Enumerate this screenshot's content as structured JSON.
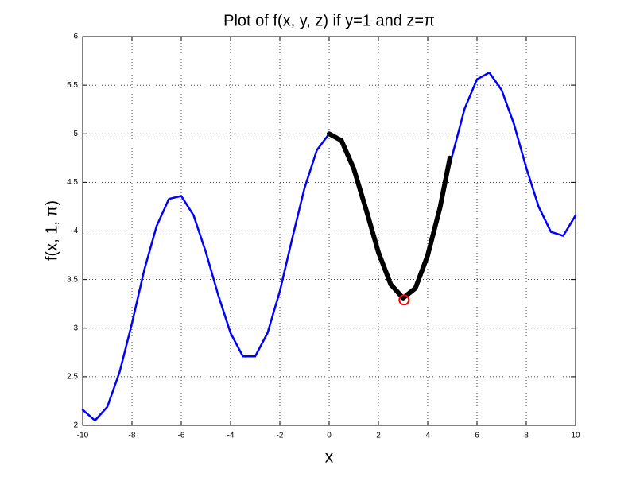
{
  "chart_data": {
    "type": "line",
    "title": "Plot of f(x, y, z) if y=1 and z=π",
    "x_label": "x",
    "y_label": "f(x, 1, π)",
    "xlim": [
      -10,
      10
    ],
    "ylim": [
      2,
      6
    ],
    "xticks": [
      -10,
      -8,
      -6,
      -4,
      -2,
      0,
      2,
      4,
      6,
      8,
      10
    ],
    "yticks": [
      2,
      2.5,
      3,
      3.5,
      4,
      4.5,
      5,
      5.5,
      6
    ],
    "grid": true,
    "series": [
      {
        "color": "#0000ff",
        "width": 2.5,
        "x": [
          -10,
          -9.5,
          -9,
          -8.5,
          -8,
          -7.5,
          -7,
          -6.5,
          -6,
          -5.5,
          -5,
          -4.5,
          -4,
          -3.5,
          -3,
          -2.5,
          -2,
          -1.5,
          -1,
          -0.5,
          0,
          0.5,
          1,
          1.5,
          2,
          2.5,
          3,
          3.5,
          4,
          4.5,
          5,
          5.5,
          6,
          6.5,
          7,
          7.5,
          8,
          8.5,
          9,
          9.5,
          10
        ],
        "values": [
          2.16,
          2.05,
          2.19,
          2.55,
          3.05,
          3.6,
          4.05,
          4.33,
          4.36,
          4.16,
          3.78,
          3.34,
          2.95,
          2.71,
          2.71,
          2.95,
          3.38,
          3.92,
          4.44,
          4.83,
          5,
          4.93,
          4.64,
          4.22,
          3.78,
          3.45,
          3.31,
          3.41,
          3.75,
          4.24,
          4.78,
          5.26,
          5.56,
          5.63,
          5.45,
          5.1,
          4.65,
          4.25,
          3.99,
          3.95,
          4.16
        ]
      },
      {
        "color": "#000000",
        "width": 6,
        "x": [
          0,
          0.5,
          1,
          1.5,
          2,
          2.5,
          3,
          3.5,
          4,
          4.5,
          4.9
        ],
        "values": [
          5,
          4.93,
          4.64,
          4.22,
          3.78,
          3.45,
          3.31,
          3.41,
          3.75,
          4.24,
          4.75
        ]
      },
      {
        "color": "#ff0000",
        "marker": "o",
        "x": [
          3.04
        ],
        "values": [
          3.29
        ]
      }
    ]
  }
}
